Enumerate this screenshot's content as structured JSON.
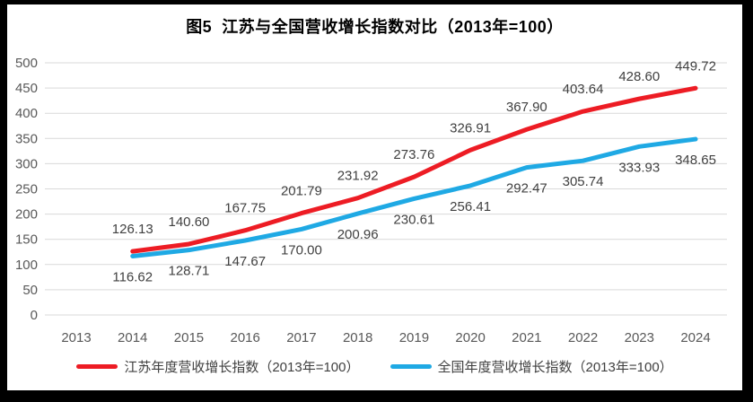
{
  "frame": {
    "background": "#000000",
    "panel_background": "#ffffff"
  },
  "colors": {
    "gridline": "#d9d9d9",
    "axis_text": "#595959",
    "data_label_text": "#404040",
    "title_text": "#000000"
  },
  "chart_data": {
    "type": "line",
    "title": "图5  江苏与全国营收增长指数对比（2013年=100）",
    "categories": [
      "2013",
      "2014",
      "2015",
      "2016",
      "2017",
      "2018",
      "2019",
      "2020",
      "2021",
      "2022",
      "2023",
      "2024"
    ],
    "series": [
      {
        "name": "江苏年度营收增长指数（2013年=100）",
        "color": "#ed1c24",
        "values": [
          null,
          126.13,
          140.6,
          167.75,
          201.79,
          231.92,
          273.76,
          326.91,
          367.9,
          403.64,
          428.6,
          449.72
        ],
        "label_position": "above"
      },
      {
        "name": "全国年度营收增长指数（2013年=100）",
        "color": "#1fa9e4",
        "values": [
          null,
          116.62,
          128.71,
          147.67,
          170.0,
          200.96,
          230.61,
          256.41,
          292.47,
          305.74,
          333.93,
          348.65
        ],
        "label_position": "below"
      }
    ],
    "xlabel": "",
    "ylabel": "",
    "ylim": [
      0,
      500
    ],
    "y_ticks": [
      0,
      50,
      100,
      150,
      200,
      250,
      300,
      350,
      400,
      450,
      500
    ],
    "grid": "horizontal",
    "legend_position": "bottom",
    "data_labels": true,
    "label_decimals": 2
  }
}
